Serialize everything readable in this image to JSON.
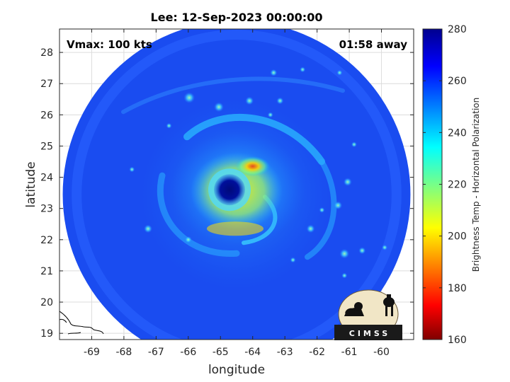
{
  "chart_data": {
    "type": "heatmap",
    "title": "Lee: 12-Sep-2023 00:00:00",
    "xlabel": "longitude",
    "ylabel": "latitude",
    "xlim": [
      -70.0,
      -59.0
    ],
    "ylim": [
      18.8,
      28.75
    ],
    "xticks": [
      -69,
      -68,
      -67,
      -66,
      -65,
      -64,
      -63,
      -62,
      -61,
      -60
    ],
    "xtick_labels": [
      "-69",
      "-68",
      "-67",
      "-66",
      "-65",
      "-64",
      "-63",
      "-62",
      "-61",
      "-60"
    ],
    "yticks": [
      19,
      20,
      21,
      22,
      23,
      24,
      25,
      26,
      27,
      28
    ],
    "ytick_labels": [
      "19",
      "20",
      "21",
      "22",
      "23",
      "24",
      "25",
      "26",
      "27",
      "28"
    ],
    "grid": true,
    "colormap": "jet",
    "colorbar": {
      "label": "Brightness Temp - Horizontal Polarization",
      "range": [
        160,
        280
      ],
      "ticks": [
        160,
        180,
        200,
        220,
        240,
        260,
        280
      ],
      "tick_labels": [
        "160",
        "180",
        "200",
        "220",
        "240",
        "260",
        "280"
      ],
      "position": "right"
    },
    "swath": {
      "center_lon": -64.5,
      "center_lat": 23.45,
      "radius_deg": 5.4
    },
    "storm": {
      "eye": {
        "lon": -64.72,
        "lat": 23.6,
        "value": 275
      },
      "eyewall_min": {
        "lon": -64.0,
        "lat": 24.35,
        "value": 188
      },
      "background_value": 262
    },
    "annotations": {
      "vmax": "Vmax: 100 kts",
      "time_away": "01:58 away"
    },
    "logo_text": "CIMSS"
  }
}
